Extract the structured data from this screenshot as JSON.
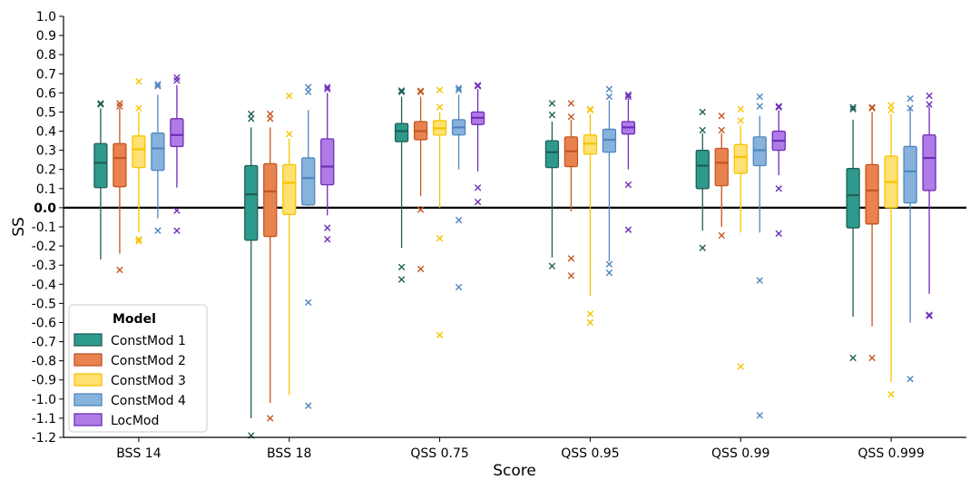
{
  "chart_data": {
    "type": "box",
    "xlabel": "Score",
    "ylabel": "SS",
    "ylim": [
      -1.2,
      1.0
    ],
    "yticks": [
      "1.0",
      "0.9",
      "0.8",
      "0.7",
      "0.6",
      "0.5",
      "0.4",
      "0.3",
      "0.2",
      "0.1",
      "0.0",
      "-0.1",
      "-0.2",
      "-0.3",
      "-0.4",
      "-0.5",
      "-0.6",
      "-0.7",
      "-0.8",
      "-0.9",
      "-1.0",
      "-1.1",
      "-1.2"
    ],
    "ytick_values": [
      1.0,
      0.9,
      0.8,
      0.7,
      0.6,
      0.5,
      0.4,
      0.3,
      0.2,
      0.1,
      0.0,
      -0.1,
      -0.2,
      -0.3,
      -0.4,
      -0.5,
      -0.6,
      -0.7,
      -0.8,
      -0.9,
      -1.0,
      -1.1,
      -1.2
    ],
    "categories": [
      "BSS 14",
      "BSS 18",
      "QSS 0.75",
      "QSS 0.95",
      "QSS 0.99",
      "QSS 0.999"
    ],
    "zero_line": true,
    "legend": {
      "title": "Model",
      "position": "lower-left"
    },
    "series": [
      {
        "name": "ConstMod 1",
        "color": "#2e9a8c",
        "edge": "#1f5f57",
        "boxes": [
          {
            "whislo": -0.27,
            "q1": 0.105,
            "med": 0.235,
            "q3": 0.335,
            "whishi": 0.52,
            "fliers": [
              0.54,
              0.545
            ]
          },
          {
            "whislo": -1.1,
            "q1": -0.17,
            "med": 0.07,
            "q3": 0.22,
            "whishi": 0.42,
            "fliers": [
              0.465,
              0.49,
              -1.19
            ]
          },
          {
            "whislo": -0.21,
            "q1": 0.345,
            "med": 0.4,
            "q3": 0.44,
            "whishi": 0.58,
            "fliers": [
              0.605,
              0.612,
              -0.31,
              -0.375
            ]
          },
          {
            "whislo": -0.26,
            "q1": 0.21,
            "med": 0.29,
            "q3": 0.35,
            "whishi": 0.45,
            "fliers": [
              0.485,
              0.545,
              -0.305
            ]
          },
          {
            "whislo": -0.12,
            "q1": 0.1,
            "med": 0.22,
            "q3": 0.3,
            "whishi": 0.39,
            "fliers": [
              0.405,
              0.5,
              -0.21
            ]
          },
          {
            "whislo": -0.57,
            "q1": -0.105,
            "med": 0.065,
            "q3": 0.205,
            "whishi": 0.46,
            "fliers": [
              0.515,
              0.525,
              -0.785
            ]
          }
        ]
      },
      {
        "name": "ConstMod 2",
        "color": "#e8824f",
        "edge": "#c4561f",
        "boxes": [
          {
            "whislo": -0.24,
            "q1": 0.11,
            "med": 0.26,
            "q3": 0.335,
            "whishi": 0.52,
            "fliers": [
              0.53,
              0.545,
              -0.325
            ]
          },
          {
            "whislo": -1.02,
            "q1": -0.15,
            "med": 0.085,
            "q3": 0.23,
            "whishi": 0.42,
            "fliers": [
              0.465,
              0.49,
              -1.1
            ]
          },
          {
            "whislo": 0.06,
            "q1": 0.355,
            "med": 0.4,
            "q3": 0.45,
            "whishi": 0.58,
            "fliers": [
              0.605,
              0.61,
              -0.01,
              -0.32
            ]
          },
          {
            "whislo": -0.02,
            "q1": 0.215,
            "med": 0.295,
            "q3": 0.37,
            "whishi": 0.46,
            "fliers": [
              0.475,
              0.545,
              -0.265,
              -0.355
            ]
          },
          {
            "whislo": -0.1,
            "q1": 0.115,
            "med": 0.235,
            "q3": 0.31,
            "whishi": 0.39,
            "fliers": [
              0.405,
              0.48,
              -0.145
            ]
          },
          {
            "whislo": -0.62,
            "q1": -0.085,
            "med": 0.09,
            "q3": 0.225,
            "whishi": 0.5,
            "fliers": [
              0.52,
              0.525,
              -0.785
            ]
          }
        ]
      },
      {
        "name": "ConstMod 3",
        "color": "#ffe173",
        "edge": "#f5c400",
        "boxes": [
          {
            "whislo": -0.13,
            "q1": 0.21,
            "med": 0.305,
            "q3": 0.375,
            "whishi": 0.5,
            "fliers": [
              0.52,
              0.66,
              -0.165,
              -0.175
            ]
          },
          {
            "whislo": -0.98,
            "q1": -0.035,
            "med": 0.13,
            "q3": 0.225,
            "whishi": 0.36,
            "fliers": [
              0.385,
              0.585
            ]
          },
          {
            "whislo": 0.0,
            "q1": 0.38,
            "med": 0.415,
            "q3": 0.455,
            "whishi": 0.5,
            "fliers": [
              0.525,
              0.615,
              -0.16,
              -0.665
            ]
          },
          {
            "whislo": -0.46,
            "q1": 0.28,
            "med": 0.335,
            "q3": 0.38,
            "whishi": 0.49,
            "fliers": [
              0.51,
              0.515,
              -0.555,
              -0.6
            ]
          },
          {
            "whislo": -0.13,
            "q1": 0.18,
            "med": 0.265,
            "q3": 0.33,
            "whishi": 0.43,
            "fliers": [
              0.455,
              0.515,
              -0.83
            ]
          },
          {
            "whislo": -0.91,
            "q1": 0.0,
            "med": 0.135,
            "q3": 0.27,
            "whishi": 0.49,
            "fliers": [
              0.51,
              0.535,
              -0.975
            ]
          }
        ]
      },
      {
        "name": "ConstMod 4",
        "color": "#86b2dc",
        "edge": "#4f86bf",
        "boxes": [
          {
            "whislo": -0.055,
            "q1": 0.195,
            "med": 0.31,
            "q3": 0.39,
            "whishi": 0.59,
            "fliers": [
              0.635,
              0.645,
              -0.12
            ]
          },
          {
            "whislo": 0.01,
            "q1": 0.015,
            "med": 0.155,
            "q3": 0.26,
            "whishi": 0.51,
            "fliers": [
              0.605,
              0.63,
              -0.495,
              -1.035
            ]
          },
          {
            "whislo": 0.2,
            "q1": 0.38,
            "med": 0.42,
            "q3": 0.46,
            "whishi": 0.59,
            "fliers": [
              0.615,
              0.625,
              -0.065,
              -0.415
            ]
          },
          {
            "whislo": -0.28,
            "q1": 0.29,
            "med": 0.355,
            "q3": 0.41,
            "whishi": 0.56,
            "fliers": [
              0.58,
              0.62,
              -0.295,
              -0.34
            ]
          },
          {
            "whislo": -0.13,
            "q1": 0.22,
            "med": 0.3,
            "q3": 0.37,
            "whishi": 0.48,
            "fliers": [
              0.53,
              0.58,
              -0.38,
              -1.085
            ]
          },
          {
            "whislo": -0.6,
            "q1": 0.025,
            "med": 0.19,
            "q3": 0.32,
            "whishi": 0.52,
            "fliers": [
              0.52,
              0.57,
              -0.895
            ]
          }
        ]
      },
      {
        "name": "LocMod",
        "color": "#b07be6",
        "edge": "#6e2db8",
        "boxes": [
          {
            "whislo": 0.105,
            "q1": 0.32,
            "med": 0.38,
            "q3": 0.465,
            "whishi": 0.64,
            "fliers": [
              0.665,
              0.68,
              -0.015,
              -0.12
            ]
          },
          {
            "whislo": -0.04,
            "q1": 0.12,
            "med": 0.215,
            "q3": 0.36,
            "whishi": 0.6,
            "fliers": [
              0.62,
              0.63,
              -0.105,
              -0.165
            ]
          },
          {
            "whislo": 0.19,
            "q1": 0.435,
            "med": 0.47,
            "q3": 0.5,
            "whishi": 0.62,
            "fliers": [
              0.635,
              0.64,
              0.105,
              0.03
            ]
          },
          {
            "whislo": 0.2,
            "q1": 0.385,
            "med": 0.42,
            "q3": 0.45,
            "whishi": 0.57,
            "fliers": [
              0.58,
              0.59,
              0.12,
              -0.115
            ]
          },
          {
            "whislo": 0.17,
            "q1": 0.3,
            "med": 0.35,
            "q3": 0.4,
            "whishi": 0.51,
            "fliers": [
              0.525,
              0.53,
              0.1,
              -0.135
            ]
          },
          {
            "whislo": -0.45,
            "q1": 0.09,
            "med": 0.26,
            "q3": 0.38,
            "whishi": 0.53,
            "fliers": [
              0.54,
              0.585,
              -0.56,
              -0.565
            ]
          }
        ]
      }
    ]
  }
}
